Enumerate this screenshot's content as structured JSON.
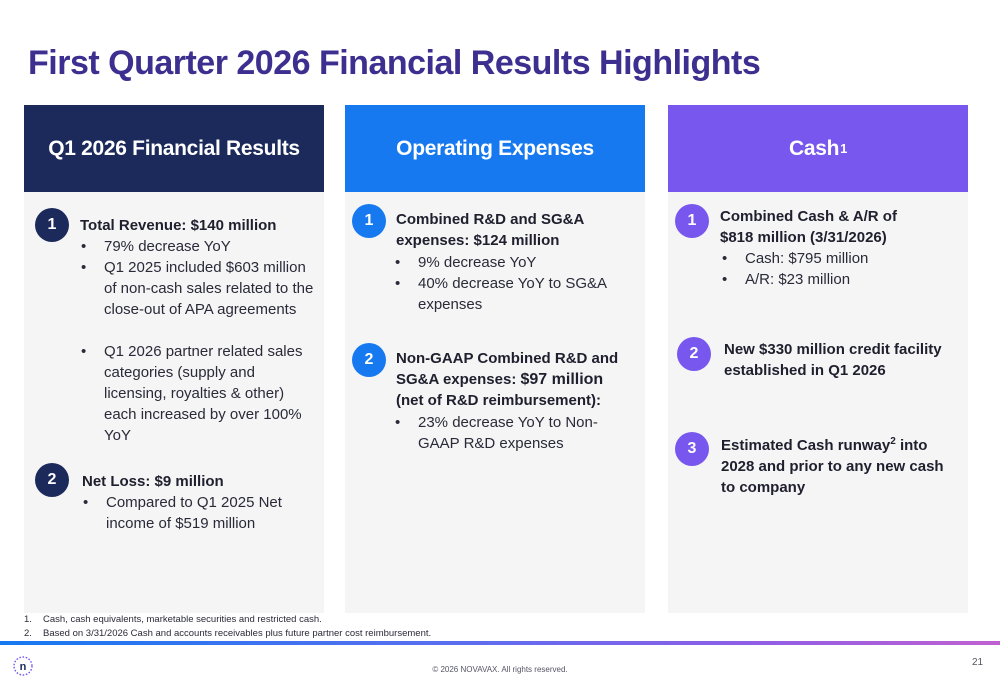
{
  "title": "First Quarter 2026 Financial Results Highlights",
  "columns": [
    {
      "header": "Q1 2026 Financial Results",
      "items": [
        {
          "number": "1",
          "title": "Total Revenue:  $140 million",
          "bullets": [
            "79% decrease YoY",
            "Q1 2025 included $603 million of non-cash sales related to the close-out of APA agreements",
            "Q1 2026 partner related sales categories (supply and licensing, royalties & other) each increased by over 100% YoY"
          ]
        },
        {
          "number": "2",
          "title": "Net Loss:  $9 million",
          "bullets": [
            "Compared to Q1 2025 Net income of $519 million"
          ]
        }
      ]
    },
    {
      "header": "Operating Expenses",
      "items": [
        {
          "number": "1",
          "title": "Combined R&D and SG&A expenses:  $124 million",
          "bullets": [
            "9% decrease YoY",
            "40% decrease YoY to SG&A expenses"
          ]
        },
        {
          "number": "2",
          "title_line1": "Non-GAAP Combined R&D and SG&A expenses: ",
          "title_amount": "$97 million",
          "title_line2": "(net of R&D reimbursement):",
          "bullets": [
            "23% decrease YoY to Non-GAAP R&D expenses"
          ]
        }
      ]
    },
    {
      "header": "Cash",
      "header_sup": "1",
      "items": [
        {
          "number": "1",
          "title": "Combined Cash & A/R of $818 million (3/31/2026)",
          "bullets": [
            "Cash:  $795 million",
            "A/R:  $23 million"
          ]
        },
        {
          "number": "2",
          "title": "New $330 million credit facility established in Q1 2026"
        },
        {
          "number": "3",
          "title_pre": "Estimated Cash runway",
          "title_sup": "2",
          "title_post": " into 2028 and prior to any new cash to company"
        }
      ]
    }
  ],
  "footnotes": [
    {
      "num": "1.",
      "text": "Cash, cash equivalents, marketable securities and restricted cash."
    },
    {
      "num": "2.",
      "text": "Based on 3/31/2026 Cash  and accounts receivables plus future partner cost reimbursement."
    }
  ],
  "footer": {
    "copyright": "© 2026 NOVAVAX. All rights reserved.",
    "page_number": "21",
    "logo_letter": "n"
  },
  "colors": {
    "title": "#3d2f8f",
    "navy": "#1b2a5b",
    "blue": "#1679f0",
    "purple": "#7757ee"
  }
}
